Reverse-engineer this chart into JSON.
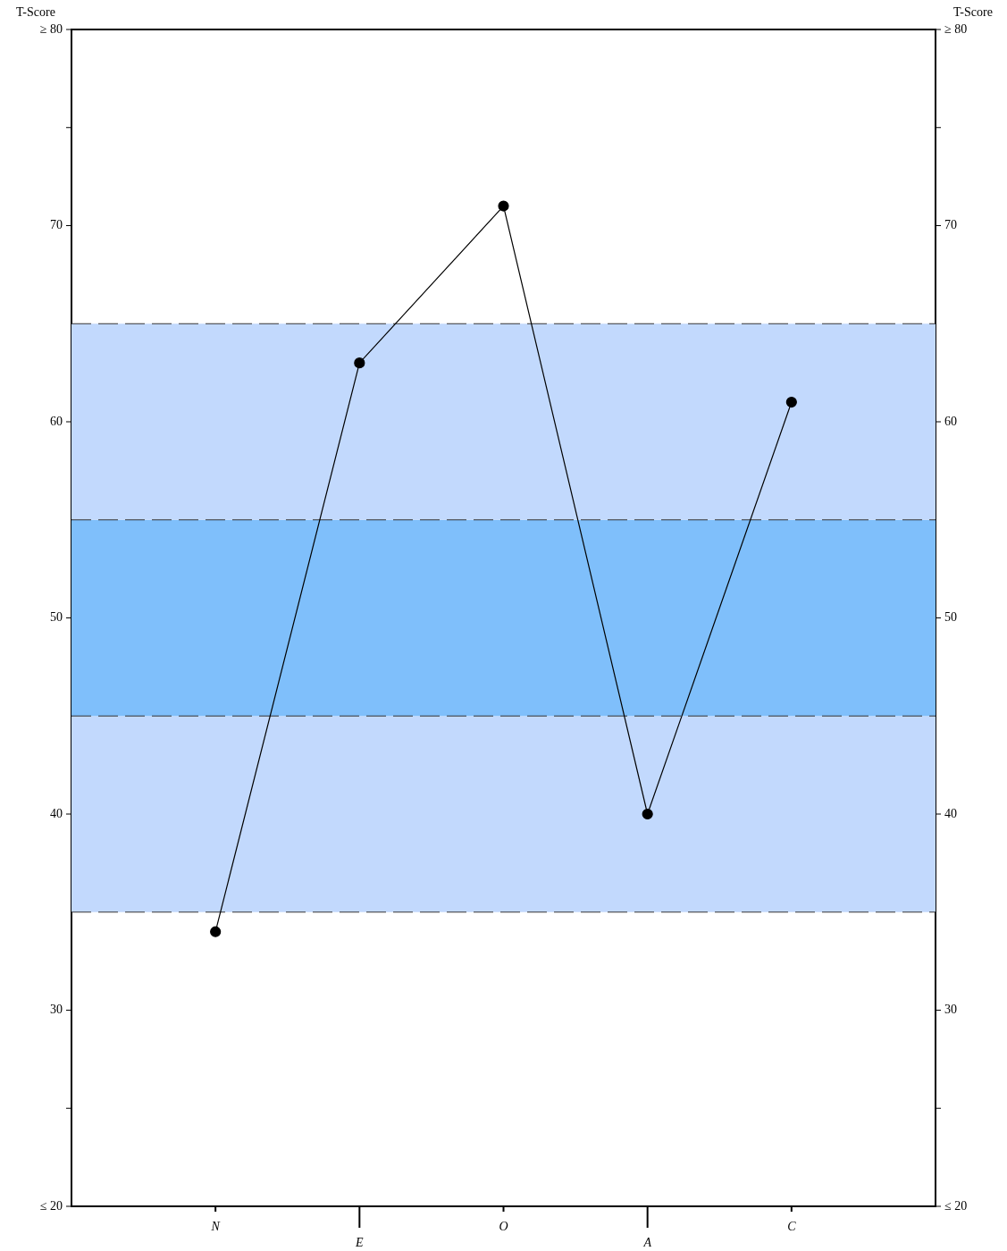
{
  "chart_data": {
    "type": "line",
    "ylabel": "T-Score",
    "y2label": "T-Score",
    "categories": [
      "N",
      "E",
      "O",
      "A",
      "C"
    ],
    "series": [
      {
        "color": "#000000",
        "values": [
          34,
          63,
          71,
          40,
          61
        ]
      }
    ],
    "ylim": [
      20,
      80
    ],
    "yticks": [
      {
        "value": 20,
        "label": "≤ 20"
      },
      {
        "value": 25,
        "label": null
      },
      30,
      40,
      50,
      60,
      70,
      {
        "value": 75,
        "label": null
      },
      {
        "value": 80,
        "label": "≥ 80"
      }
    ],
    "y2lim": [
      20,
      80
    ],
    "y2ticks": [
      {
        "value": 20,
        "label": "≤ 20"
      },
      {
        "value": 25,
        "label": null
      },
      30,
      40,
      50,
      60,
      70,
      {
        "value": 75,
        "label": null
      },
      {
        "value": 80,
        "label": "≥ 80"
      }
    ],
    "bands": [
      {
        "axis": "y",
        "from": 35,
        "to": 45,
        "color": "#c2d9fd"
      },
      {
        "axis": "y",
        "from": 45,
        "to": 55,
        "color": "#7fbffb"
      },
      {
        "axis": "y",
        "from": 55,
        "to": 65,
        "color": "#c2d9fd"
      }
    ],
    "ref_lines": [
      {
        "axis": "y",
        "value": 35,
        "color": "#333333",
        "line_style": "dashed"
      },
      {
        "axis": "y",
        "value": 45,
        "color": "#333333",
        "line_style": "dashed"
      },
      {
        "axis": "y",
        "value": 55,
        "color": "#333333",
        "line_style": "dashed"
      },
      {
        "axis": "y",
        "value": 65,
        "color": "#333333",
        "line_style": "dashed"
      }
    ],
    "marker": "circle",
    "line_style": "solid",
    "grid": false,
    "legend": false
  }
}
